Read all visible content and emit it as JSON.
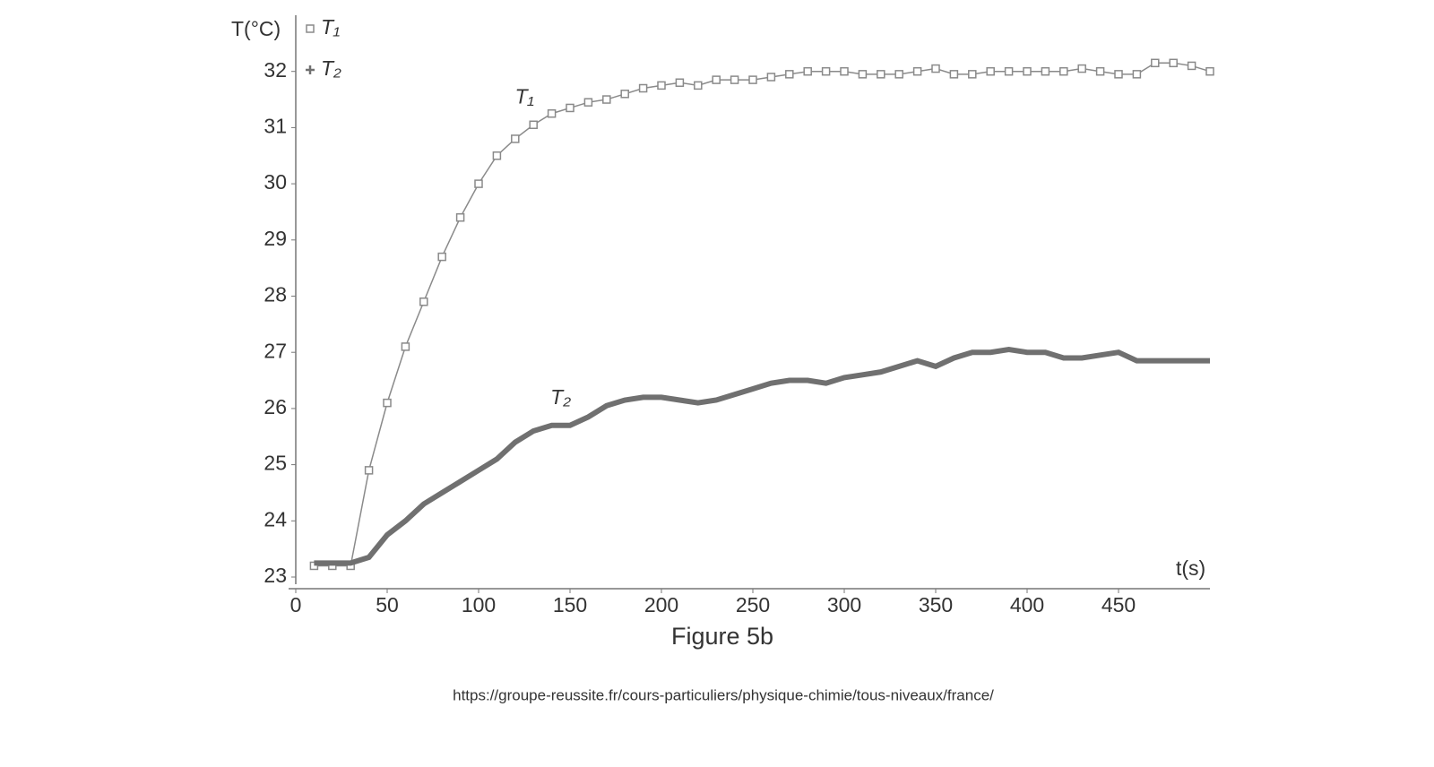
{
  "chart_data": {
    "type": "line",
    "y_label": "T(°C)",
    "x_label": "t(s)",
    "caption": "Figure 5b",
    "source": "https://groupe-reussite.fr/cours-particuliers/physique-chimie/tous-niveaux/france/",
    "x": [
      10,
      20,
      30,
      40,
      50,
      60,
      70,
      80,
      90,
      100,
      110,
      120,
      130,
      140,
      150,
      160,
      170,
      180,
      190,
      200,
      210,
      220,
      230,
      240,
      250,
      260,
      270,
      280,
      290,
      300,
      310,
      320,
      330,
      340,
      350,
      360,
      370,
      380,
      390,
      400,
      410,
      420,
      430,
      440,
      450,
      460,
      470,
      480,
      490,
      500
    ],
    "series": [
      {
        "name": "T₁",
        "color": "#8a8a8a",
        "marker": "square",
        "values": [
          23.2,
          23.2,
          23.2,
          24.9,
          26.1,
          27.1,
          27.9,
          28.7,
          29.4,
          30.0,
          30.5,
          30.8,
          31.05,
          31.25,
          31.35,
          31.45,
          31.5,
          31.6,
          31.7,
          31.75,
          31.8,
          31.75,
          31.85,
          31.85,
          31.85,
          31.9,
          31.95,
          32.0,
          32.0,
          32.0,
          31.95,
          31.95,
          31.95,
          32.0,
          32.05,
          31.95,
          31.95,
          32.0,
          32.0,
          32.0,
          32.0,
          32.0,
          32.05,
          32.0,
          31.95,
          31.95,
          32.15,
          32.15,
          32.1,
          32.0
        ]
      },
      {
        "name": "T₂",
        "color": "#707070",
        "marker": "plus",
        "values": [
          23.25,
          23.25,
          23.25,
          23.35,
          23.75,
          24.0,
          24.3,
          24.5,
          24.7,
          24.9,
          25.1,
          25.4,
          25.6,
          25.7,
          25.7,
          25.85,
          26.05,
          26.15,
          26.2,
          26.2,
          26.15,
          26.1,
          26.15,
          26.25,
          26.35,
          26.45,
          26.5,
          26.5,
          26.45,
          26.55,
          26.6,
          26.65,
          26.75,
          26.85,
          26.75,
          26.9,
          27.0,
          27.0,
          27.05,
          27.0,
          27.0,
          26.9,
          26.9,
          26.95,
          27.0,
          26.85,
          26.85,
          26.85,
          26.85,
          26.85
        ]
      }
    ],
    "xlim": [
      0,
      500
    ],
    "ylim": [
      23,
      33
    ],
    "xticks": [
      0,
      50,
      100,
      150,
      200,
      250,
      300,
      350,
      400,
      450
    ],
    "yticks": [
      23,
      24,
      25,
      26,
      27,
      28,
      29,
      30,
      31,
      32
    ],
    "grid": false
  }
}
